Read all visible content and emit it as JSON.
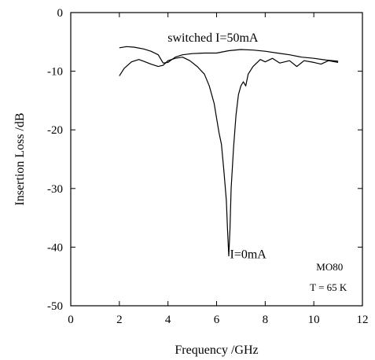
{
  "chart_data": {
    "type": "line",
    "xlabel": "Frequency /GHz",
    "ylabel": "Insertion Loss /dB",
    "xlim": [
      0,
      12
    ],
    "ylim": [
      -50,
      0
    ],
    "xticks": [
      0,
      2,
      4,
      6,
      8,
      10,
      12
    ],
    "yticks": [
      0,
      -10,
      -20,
      -30,
      -40,
      -50
    ],
    "grid": false,
    "series": [
      {
        "name": "switched I=50mA",
        "x": [
          2.0,
          2.3,
          2.6,
          3.0,
          3.3,
          3.6,
          3.8,
          4.0,
          4.3,
          4.6,
          5.0,
          5.5,
          6.0,
          6.5,
          7.0,
          7.5,
          8.0,
          8.5,
          9.0,
          9.5,
          10.0,
          10.5,
          11.0
        ],
        "y": [
          -6.0,
          -5.8,
          -5.9,
          -6.2,
          -6.6,
          -7.2,
          -8.6,
          -8.5,
          -7.6,
          -7.2,
          -7.0,
          -6.9,
          -6.9,
          -6.5,
          -6.3,
          -6.4,
          -6.6,
          -6.9,
          -7.2,
          -7.6,
          -7.8,
          -8.1,
          -8.3
        ]
      },
      {
        "name": "I=0mA",
        "x": [
          2.0,
          2.2,
          2.5,
          2.8,
          3.0,
          3.3,
          3.6,
          3.8,
          4.0,
          4.3,
          4.6,
          4.9,
          5.2,
          5.5,
          5.7,
          5.9,
          6.0,
          6.1,
          6.2,
          6.3,
          6.4,
          6.45,
          6.5,
          6.55,
          6.6,
          6.7,
          6.8,
          6.9,
          7.0,
          7.1,
          7.2,
          7.3,
          7.5,
          7.8,
          8.0,
          8.3,
          8.6,
          9.0,
          9.3,
          9.6,
          10.0,
          10.3,
          10.6,
          11.0
        ],
        "y": [
          -10.8,
          -9.5,
          -8.4,
          -8.0,
          -8.3,
          -8.8,
          -9.2,
          -9.0,
          -8.2,
          -7.8,
          -7.6,
          -8.2,
          -9.2,
          -10.5,
          -12.5,
          -15.5,
          -18.0,
          -20.5,
          -22.5,
          -27.0,
          -32.0,
          -37.0,
          -41.5,
          -37.0,
          -30.0,
          -23.0,
          -17.5,
          -14.0,
          -12.5,
          -11.8,
          -12.5,
          -10.5,
          -9.2,
          -8.0,
          -8.4,
          -7.8,
          -8.6,
          -8.2,
          -9.2,
          -8.2,
          -8.5,
          -8.8,
          -8.2,
          -8.5
        ]
      }
    ],
    "annotations": [
      {
        "text": "switched I=50mA",
        "x": 5.85,
        "y": -4.3
      },
      {
        "text": "I=0mA",
        "x": 7.3,
        "y": -41.2
      },
      {
        "text": "MO80",
        "x": 10.65,
        "y": -43.3
      },
      {
        "text": "T = 65 K",
        "x": 10.6,
        "y": -46.8
      }
    ]
  }
}
